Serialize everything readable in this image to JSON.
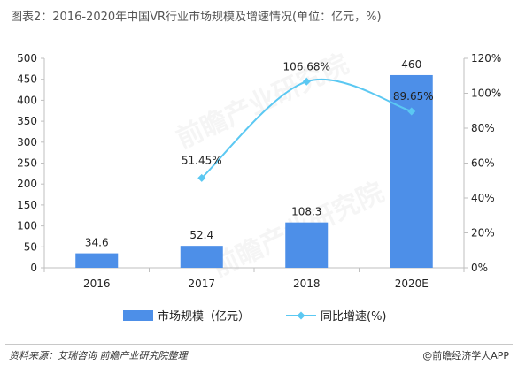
{
  "header": {
    "title": "图表2：2016-2020年中国VR行业市场规模及增速情况(单位：亿元，%)"
  },
  "footer": {
    "source": "资料来源：艾瑞咨询 前瞻产业研究院整理",
    "brand": "@前瞻经济学人APP"
  },
  "watermark": {
    "text": "前瞻产业研究院"
  },
  "colors": {
    "bar": "#4d8fe8",
    "line": "#5bc8f2",
    "axis": "#bfbfbf"
  },
  "chart_data": {
    "type": "bar",
    "title": "图表2：2016-2020年中国VR行业市场规模及增速情况(单位：亿元，%)",
    "categories": [
      "2016",
      "2017",
      "2018",
      "2020E"
    ],
    "y_left": {
      "ylim": [
        0,
        500
      ],
      "ticks": [
        "0",
        "50",
        "100",
        "150",
        "200",
        "250",
        "300",
        "350",
        "400",
        "450",
        "500"
      ]
    },
    "y_right": {
      "ylim": [
        0,
        120
      ],
      "ticks": [
        "0%",
        "20%",
        "40%",
        "60%",
        "80%",
        "100%",
        "120%"
      ]
    },
    "series": [
      {
        "name": "市场规模（亿元）",
        "type": "bar",
        "axis": "left",
        "values": [
          34.6,
          52.4,
          108.3,
          460
        ],
        "labels": [
          "34.6",
          "52.4",
          "108.3",
          "460"
        ]
      },
      {
        "name": "同比增速(%)",
        "type": "line",
        "axis": "right",
        "values": [
          null,
          51.45,
          106.68,
          89.65
        ],
        "labels": [
          "",
          "51.45%",
          "106.68%",
          "89.65%"
        ]
      }
    ],
    "legend": {
      "position": "bottom"
    },
    "grid": false
  }
}
